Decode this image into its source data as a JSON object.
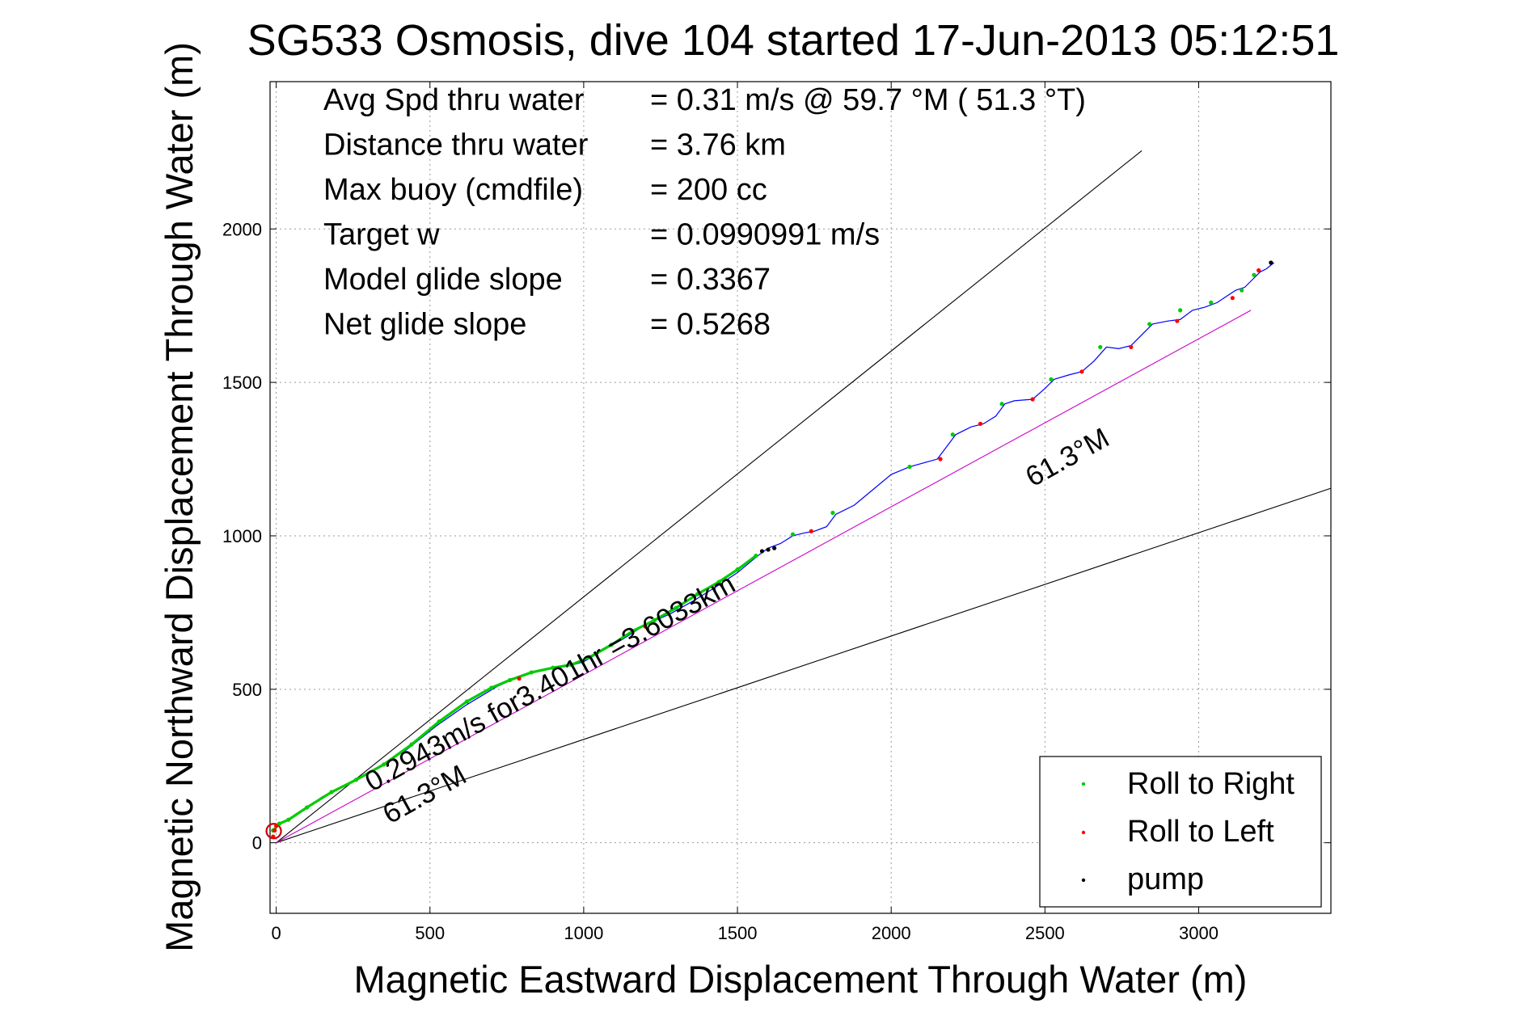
{
  "chart_data": {
    "type": "line",
    "title": "SG533 Osmosis, dive 104 started 17-Jun-2013 05:12:51",
    "xlabel": "Magnetic Eastward Displacement Through Water (m)",
    "ylabel": "Magnetic Northward Displacement Through Water (m)",
    "xlim": [
      -20,
      3430
    ],
    "ylim": [
      -230,
      2480
    ],
    "xticks": [
      0,
      500,
      1000,
      1500,
      2000,
      2500,
      3000
    ],
    "yticks": [
      0,
      500,
      1000,
      1500,
      2000
    ],
    "grid": true,
    "legend_position": "bottom-right",
    "info_lines": [
      {
        "label": "Avg Spd thru water",
        "value": "=  0.31 m/s @  59.7 °M ( 51.3 °T)"
      },
      {
        "label": "Distance thru water",
        "value": "=  3.76 km"
      },
      {
        "label": "Max buoy (cmdfile)",
        "value": "= 200 cc"
      },
      {
        "label": "Target w",
        "value": "= 0.0990991 m/s"
      },
      {
        "label": "Model glide slope",
        "value": "= 0.3367"
      },
      {
        "label": "Net glide slope",
        "value": "= 0.5268"
      }
    ],
    "annotations": {
      "net_speed": "0.2943m/s for3.401hr =3.6033km",
      "heading_upper": "61.3°M",
      "heading_lower": "61.3°M"
    },
    "reference_lines": [
      {
        "from": [
          0,
          0
        ],
        "to": [
          2815,
          2255
        ],
        "color": "#000000"
      },
      {
        "from": [
          0,
          0
        ],
        "to": [
          3430,
          1155
        ],
        "color": "#000000"
      },
      {
        "from": [
          0,
          0
        ],
        "to": [
          3170,
          1735
        ],
        "color": "#cc00cc"
      }
    ],
    "track": {
      "color": "#0000ff",
      "x": [
        -10,
        0,
        30,
        80,
        150,
        230,
        320,
        420,
        520,
        620,
        720,
        800,
        880,
        950,
        1000,
        1060,
        1130,
        1200,
        1280,
        1360,
        1440,
        1500,
        1560,
        1600,
        1640,
        1680,
        1720,
        1750,
        1790,
        1820,
        1880,
        1940,
        2000,
        2060,
        2150,
        2180,
        2210,
        2260,
        2300,
        2340,
        2370,
        2400,
        2460,
        2500,
        2530,
        2580,
        2620,
        2660,
        2700,
        2740,
        2780,
        2820,
        2850,
        2900,
        2940,
        2980,
        3020,
        3060,
        3090,
        3120,
        3150,
        3180,
        3200,
        3220,
        3245
      ],
      "y": [
        35,
        60,
        70,
        100,
        150,
        190,
        240,
        300,
        380,
        450,
        510,
        545,
        565,
        575,
        590,
        625,
        665,
        710,
        745,
        790,
        840,
        880,
        930,
        960,
        975,
        1000,
        1010,
        1015,
        1030,
        1070,
        1100,
        1150,
        1200,
        1225,
        1250,
        1290,
        1330,
        1355,
        1365,
        1390,
        1430,
        1440,
        1445,
        1480,
        1510,
        1525,
        1535,
        1570,
        1615,
        1610,
        1620,
        1660,
        1690,
        1700,
        1705,
        1735,
        1745,
        1760,
        1780,
        1800,
        1810,
        1840,
        1860,
        1870,
        1890
      ]
    },
    "series": [
      {
        "name": "Roll to Right",
        "color": "#00cc00",
        "x": [
          -10,
          10,
          40,
          100,
          180,
          260,
          350,
          440,
          530,
          620,
          700,
          760,
          830,
          900,
          960,
          1020,
          1090,
          1160,
          1230,
          1300,
          1370,
          1440,
          1500,
          1560,
          1680,
          1810,
          2060,
          2200,
          2360,
          2520,
          2680,
          2840,
          2940,
          3040,
          3140,
          3180
        ],
        "y": [
          40,
          62,
          75,
          115,
          165,
          205,
          255,
          320,
          395,
          460,
          505,
          530,
          555,
          570,
          580,
          605,
          645,
          690,
          725,
          765,
          810,
          850,
          890,
          935,
          1005,
          1075,
          1225,
          1330,
          1430,
          1510,
          1615,
          1690,
          1735,
          1760,
          1800,
          1850
        ]
      },
      {
        "name": "Roll to Left",
        "color": "#ff0000",
        "x": [
          -10,
          -5,
          0,
          790,
          1200,
          1740,
          2160,
          2290,
          2460,
          2620,
          2780,
          2930,
          3110,
          3195
        ],
        "y": [
          20,
          40,
          55,
          535,
          705,
          1015,
          1250,
          1365,
          1445,
          1535,
          1615,
          1700,
          1775,
          1865
        ]
      },
      {
        "name": "pump",
        "color": "#000000",
        "x": [
          1580,
          1600,
          1620,
          3235
        ],
        "y": [
          950,
          955,
          960,
          1890
        ]
      }
    ]
  }
}
